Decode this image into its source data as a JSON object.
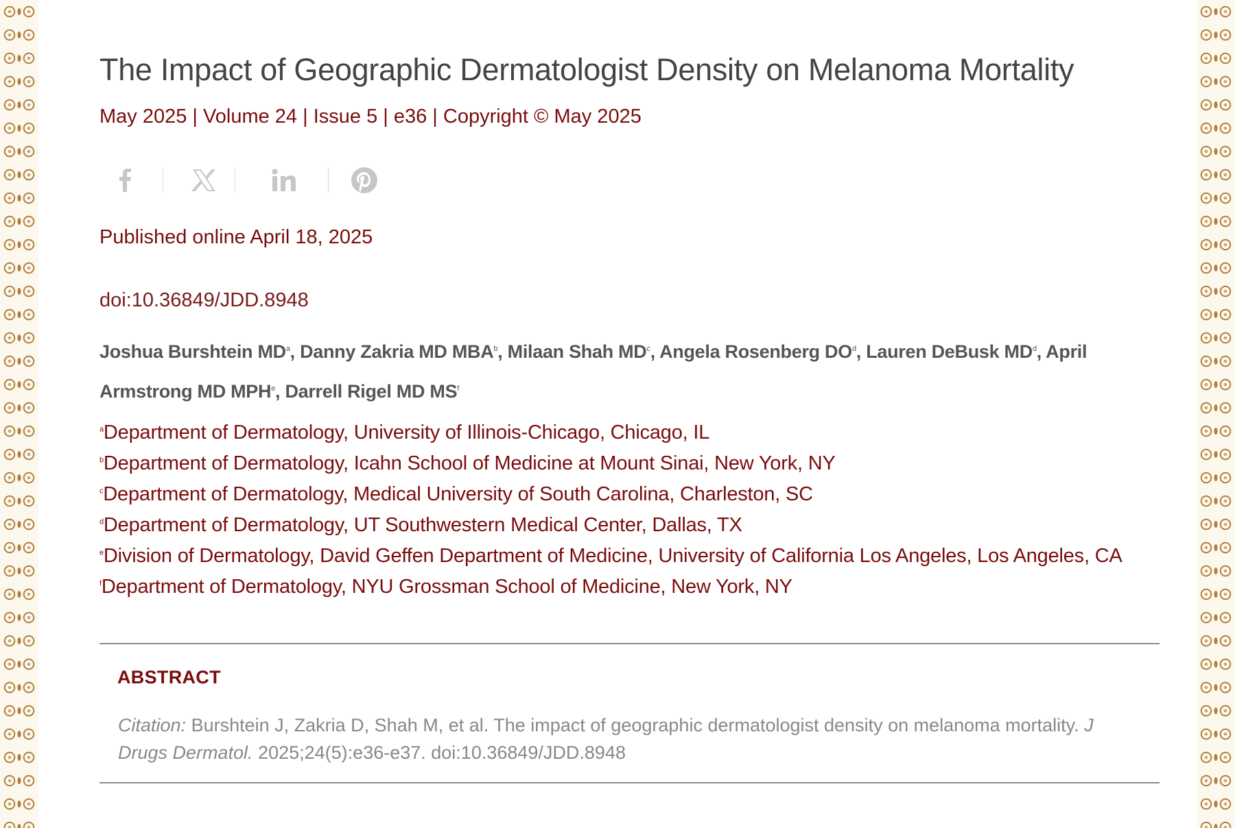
{
  "article": {
    "title": "The Impact of Geographic Dermatologist Density on Melanoma Mortality",
    "meta_line": "May 2025 | Volume 24 | Issue 5 | e36 | Copyright © May 2025",
    "published": "Published online April 18, 2025",
    "doi": "doi:10.36849/JDD.8948"
  },
  "share": {
    "icons": [
      "facebook-icon",
      "x-icon",
      "linkedin-icon",
      "pinterest-icon"
    ],
    "icon_color": "#c6c6c6"
  },
  "authors": [
    {
      "name": "Joshua Burshtein MD",
      "sup": "a",
      "sep": ", "
    },
    {
      "name": "Danny Zakria MD MBA",
      "sup": "b",
      "sep": ", "
    },
    {
      "name": "Milaan Shah MD",
      "sup": "c",
      "sep": ", "
    },
    {
      "name": "Angela Rosenberg DO",
      "sup": "d",
      "sep": ", "
    },
    {
      "name": "Lauren DeBusk MD",
      "sup": "d",
      "sep": ", "
    },
    {
      "name": "April Armstrong MD MPH",
      "sup": "e",
      "sep": ", "
    },
    {
      "name": "Darrell Rigel MD MS",
      "sup": "f",
      "sep": ""
    }
  ],
  "affiliations": [
    {
      "sup": "a",
      "text": "Department of Dermatology, University of Illinois-Chicago, Chicago, IL"
    },
    {
      "sup": "b",
      "text": "Department of Dermatology, Icahn School of Medicine at Mount Sinai, New York, NY"
    },
    {
      "sup": "c",
      "text": "Department of Dermatology, Medical University of South Carolina, Charleston, SC"
    },
    {
      "sup": "d",
      "text": "Department of Dermatology, UT Southwestern Medical Center, Dallas, TX"
    },
    {
      "sup": "e",
      "text": "Division of Dermatology, David Geffen Department of Medicine, University of California Los Angeles, Los Angeles, CA"
    },
    {
      "sup": "f",
      "text": "Department of Dermatology, NYU Grossman School of Medicine, New York, NY"
    }
  ],
  "abstract": {
    "heading": "ABSTRACT",
    "citation_label": "Citation:",
    "citation_text": "Burshtein J, Zakria D, Shah M, et al. The impact of geographic dermatologist density on melanoma mortality.",
    "citation_journal": "J Drugs Dermatol.",
    "citation_tail": "2025;24(5):e36-e37. doi:10.36849/JDD.8948"
  },
  "colors": {
    "accent": "#7a0c0c",
    "title": "#444444",
    "border_ornament": "#b07f3c"
  }
}
